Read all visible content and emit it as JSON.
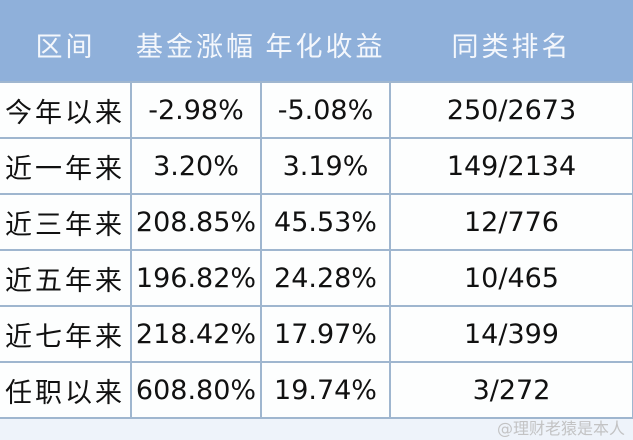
{
  "headers": [
    "区间",
    "基金涨幅",
    "年化收益",
    "同类排名"
  ],
  "rows": [
    [
      "今年以来",
      "-2.98%",
      "-5.08%",
      "250/2673"
    ],
    [
      "近一年来",
      "3.20%",
      "3.19%",
      "149/2134"
    ],
    [
      "近三年来",
      "208.85%",
      "45.53%",
      "12/776"
    ],
    [
      "近五年来",
      "196.82%",
      "24.28%",
      "10/465"
    ],
    [
      "近七年来",
      "218.42%",
      "17.97%",
      "14/399"
    ],
    [
      "任职以来",
      "608.80%",
      "19.74%",
      "3/272"
    ]
  ],
  "watermark": "@理财老猿是本人",
  "colors": {
    "header_bg": "#8fb0da",
    "border": "#9fb6cf"
  }
}
